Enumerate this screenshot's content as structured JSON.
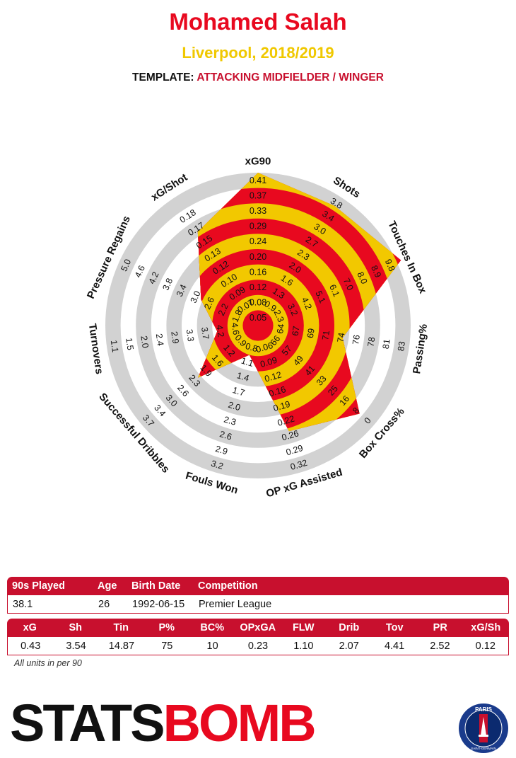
{
  "header": {
    "player_name": "Mohamed Salah",
    "club_season": "Liverpool, 2018/2019",
    "template_label": "TEMPLATE:",
    "template_value": "ATTACKING MIDFIELDER / WINGER"
  },
  "chart_data": {
    "type": "radar",
    "title": "Mohamed Salah",
    "rings": 10,
    "axes": [
      {
        "name": "xG90",
        "ticks": [
          "0.05",
          "0.08",
          "0.12",
          "0.16",
          "0.20",
          "0.24",
          "0.29",
          "0.33",
          "0.37",
          "0.41"
        ],
        "value_ring": 10
      },
      {
        "name": "Shots",
        "ticks": [
          "0.9",
          "1.3",
          "1.6",
          "2.0",
          "2.3",
          "2.7",
          "3.0",
          "3.4",
          "3.8"
        ],
        "value_ring": 9.3
      },
      {
        "name": "Touches In Box",
        "ticks": [
          "2.3",
          "3.2",
          "4.2",
          "5.1",
          "6.1",
          "7.0",
          "8.0",
          "8.9",
          "9.8"
        ],
        "value_ring": 10.3
      },
      {
        "name": "Passing%",
        "ticks": [
          "64",
          "67",
          "69",
          "71",
          "74",
          "76",
          "78",
          "81",
          "83"
        ],
        "value_ring": 5.6
      },
      {
        "name": "Box Cross%",
        "ticks": [
          "66",
          "57",
          "49",
          "41",
          "33",
          "25",
          "16",
          "8",
          "0"
        ],
        "value_ring": 8.8
      },
      {
        "name": "OP xG Assisted",
        "ticks": [
          "0.06",
          "0.09",
          "0.12",
          "0.16",
          "0.19",
          "0.22",
          "0.26",
          "0.29",
          "0.32"
        ],
        "value_ring": 7.2
      },
      {
        "name": "Fouls Won",
        "ticks": [
          "0.8",
          "1.1",
          "1.4",
          "1.7",
          "2.0",
          "2.3",
          "2.6",
          "2.9",
          "3.2"
        ],
        "value_ring": 2
      },
      {
        "name": "Successful Dribbles",
        "ticks": [
          "0.9",
          "1.2",
          "1.6",
          "1.9",
          "2.3",
          "2.6",
          "3.0",
          "3.4",
          "3.7"
        ],
        "value_ring": 5.2
      },
      {
        "name": "Turnovers",
        "ticks": [
          "4.6",
          "4.2",
          "3.7",
          "3.3",
          "2.9",
          "2.4",
          "2.0",
          "1.5",
          "1.1"
        ],
        "value_ring": 2.7
      },
      {
        "name": "Pressure Regains",
        "ticks": [
          "1.8",
          "2.2",
          "2.6",
          "3.0",
          "3.4",
          "3.8",
          "4.2",
          "4.6",
          "5.0"
        ],
        "value_ring": 4.1
      },
      {
        "name": "xG/Shot",
        "ticks": [
          "0.07",
          "0.09",
          "0.10",
          "0.12",
          "0.13",
          "0.15",
          "0.17",
          "0.18"
        ],
        "value_ring": 7.3
      }
    ],
    "colors": {
      "band_a": "#e8091f",
      "band_b": "#f2c800",
      "ring_gray": "#d2d2d2"
    }
  },
  "info_table": {
    "headers": [
      "90s Played",
      "Age",
      "Birth Date",
      "Competition"
    ],
    "values": [
      "38.1",
      "26",
      "1992-06-15",
      "Premier League"
    ]
  },
  "stats_table": {
    "headers": [
      "xG",
      "Sh",
      "Tin",
      "P%",
      "BC%",
      "OPxGA",
      "FLW",
      "Drib",
      "Tov",
      "PR",
      "xG/Sh"
    ],
    "values": [
      "0.43",
      "3.54",
      "14.87",
      "75",
      "10",
      "0.23",
      "1.10",
      "2.07",
      "4.41",
      "2.52",
      "0.12"
    ]
  },
  "footnote": "All units in per 90",
  "logo": {
    "part1": "STATS",
    "part2": "BOMB",
    "badge_text": "PARIS",
    "badge_subtext": "SAINT-GERMAIN",
    "badge_icon": "psg-crest-icon",
    "logo_icon": "target-icon"
  }
}
